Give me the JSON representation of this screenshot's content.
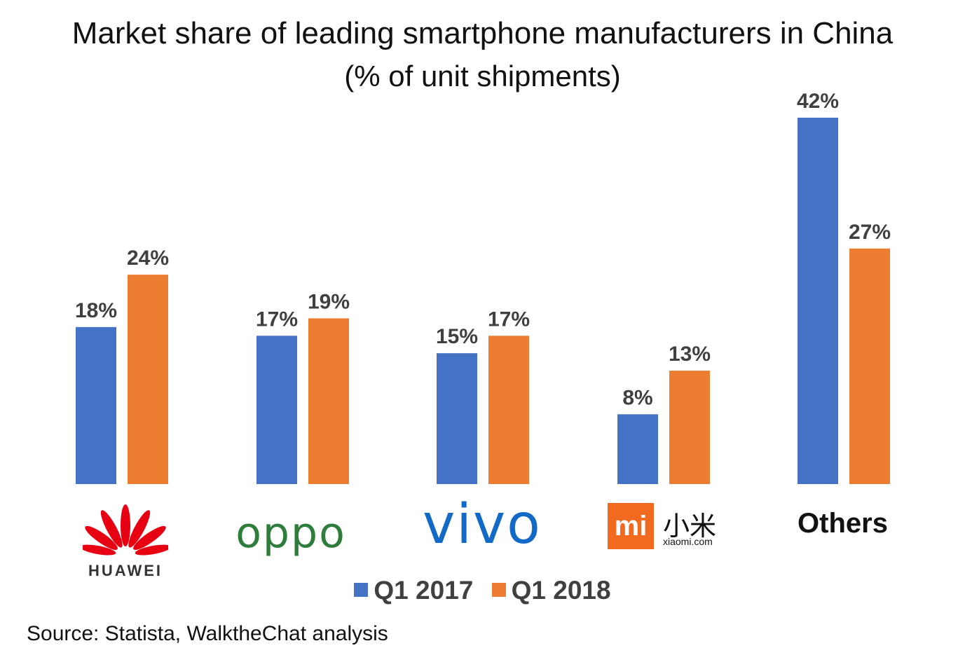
{
  "title": "Market share of leading smartphone manufacturers in China",
  "subtitle": "(% of unit shipments)",
  "source": "Source: Statista, WalktheChat analysis",
  "colors": {
    "q1_2017": "#4472c4",
    "q1_2018": "#ed7d31"
  },
  "legend": {
    "item1": "Q1 2017",
    "item2": "Q1 2018"
  },
  "category_logos": {
    "huawei": {
      "icon": "huawei-petal-logo",
      "word": "HUAWEI"
    },
    "oppo": {
      "word": "oppo"
    },
    "vivo": {
      "word": "vivo"
    },
    "xiaomi": {
      "box": "mi",
      "cn": "小米",
      "domain": "xiaomi.com"
    },
    "others": "Others"
  },
  "chart_data": {
    "type": "bar",
    "title": "Market share of leading smartphone manufacturers in China",
    "subtitle": "(% of unit shipments)",
    "categories": [
      "Huawei",
      "OPPO",
      "vivo",
      "Xiaomi",
      "Others"
    ],
    "series": [
      {
        "name": "Q1 2017",
        "values": [
          18,
          17,
          15,
          8,
          42
        ],
        "labels": [
          "18%",
          "17%",
          "15%",
          "8%",
          "42%"
        ]
      },
      {
        "name": "Q1 2018",
        "values": [
          24,
          19,
          17,
          13,
          27
        ],
        "labels": [
          "24%",
          "19%",
          "17%",
          "13%",
          "27%"
        ]
      }
    ],
    "ylim": [
      0,
      42
    ],
    "grid": false,
    "legend_position": "bottom"
  }
}
